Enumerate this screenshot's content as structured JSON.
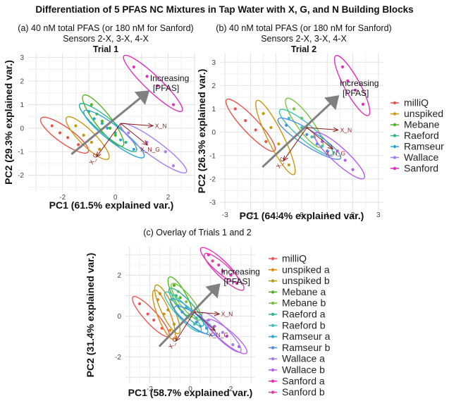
{
  "figure_title": "Differentiation of 5 PFAS NC Mixtures in Tap Water with X, G, and N Building Blocks",
  "panels": {
    "a": {
      "caption": "(a) 40 nM total PFAS (or 180 nM for Sanford)",
      "sensors": "Sensors 2-X, 3-X, 4-X",
      "trial": "Trial 1"
    },
    "b": {
      "caption": "(b) 40 nM total PFAS (or 180 nM for Sanford)",
      "sensors": "Sensors 2-X, 3-X, 4-X",
      "trial": "Trial 2"
    },
    "c": {
      "caption": "(c) Overlay of Trials 1 and 2"
    }
  },
  "annotation": {
    "arrow_label_line1": "Increasing",
    "arrow_label_line2": "[PFAS]"
  },
  "loadings": [
    "X_N",
    "X_N_G",
    "X_G"
  ],
  "colors": {
    "milliQ": "#e8534a",
    "unspiked": "#c79a0a",
    "Mebane": "#4fb31f",
    "Raeford": "#2ab592",
    "Ramseur": "#2aa6d8",
    "Wallace": "#a87cf0",
    "Sanford": "#e02fbd",
    "Mebane_b": "#72c43c",
    "Raeford_b": "#3cc4b1",
    "Ramseur_b": "#4d8ee8",
    "Wallace_b": "#b65df0",
    "milliQ_c": "#ec5555",
    "unspiked_a": "#e28a0a",
    "unspiked_b": "#b59a12",
    "Sanford_a": "#e92cc0",
    "Sanford_b": "#de3ea8"
  },
  "chart_data": [
    {
      "type": "scatter",
      "title": "Trial 1",
      "xlabel": "PC1 (61.5% explained var.)",
      "ylabel": "PC2 (29.3% explained var.)",
      "xlim": [
        -3.3,
        3.0
      ],
      "ylim": [
        -2.7,
        3.2
      ],
      "xticks": [
        -2,
        0,
        2
      ],
      "yticks": [
        -2,
        -1,
        0,
        1,
        2,
        3
      ],
      "series": [
        {
          "name": "milliQ",
          "points": [
            [
              -2.4,
              0.1
            ],
            [
              -2.1,
              -0.2
            ],
            [
              -1.8,
              -0.4
            ],
            [
              -1.4,
              -0.7
            ]
          ]
        },
        {
          "name": "unspiked",
          "points": [
            [
              -1.5,
              0.1
            ],
            [
              -1.2,
              -0.3
            ],
            [
              -0.9,
              -0.6
            ],
            [
              -0.6,
              -0.9
            ]
          ]
        },
        {
          "name": "Mebane",
          "points": [
            [
              -0.9,
              1.0
            ],
            [
              -0.7,
              0.6
            ],
            [
              -0.5,
              0.3
            ],
            [
              -0.2,
              0.0
            ],
            [
              0.0,
              -0.3
            ]
          ]
        },
        {
          "name": "Raeford",
          "points": [
            [
              -1.0,
              0.7
            ],
            [
              -0.5,
              0.2
            ],
            [
              0.0,
              -0.2
            ],
            [
              0.4,
              -0.6
            ]
          ]
        },
        {
          "name": "Ramseur",
          "points": [
            [
              -0.8,
              0.4
            ],
            [
              -0.3,
              0.0
            ],
            [
              0.2,
              -0.5
            ],
            [
              0.7,
              -0.9
            ]
          ]
        },
        {
          "name": "Wallace",
          "points": [
            [
              0.5,
              -0.2
            ],
            [
              1.2,
              -0.6
            ],
            [
              1.9,
              -1.0
            ],
            [
              2.2,
              -1.6
            ]
          ]
        },
        {
          "name": "Sanford",
          "points": [
            [
              0.7,
              2.6
            ],
            [
              1.2,
              2.2
            ],
            [
              1.6,
              1.8
            ],
            [
              2.2,
              1.0
            ]
          ]
        }
      ],
      "legend": [
        "milliQ",
        "unspiked",
        "Mebane",
        "Raeford",
        "Ramseur",
        "Wallace",
        "Sanford"
      ]
    },
    {
      "type": "scatter",
      "title": "Trial 2",
      "xlabel": "PC1 (64.4% explained var.)",
      "ylabel": "PC2 (26.3% explained var.)",
      "xlim": [
        -3.2,
        3.2
      ],
      "ylim": [
        -3.3,
        3.4
      ],
      "xticks": [
        -3,
        -2,
        -1,
        0,
        1,
        2,
        3
      ],
      "yticks": [
        -3,
        -2,
        -1,
        0,
        1,
        2,
        3
      ],
      "series": [
        {
          "name": "milliQ",
          "points": [
            [
              -2.6,
              1.0
            ],
            [
              -2.2,
              0.5
            ],
            [
              -1.8,
              0.1
            ],
            [
              -1.4,
              -0.4
            ]
          ]
        },
        {
          "name": "unspiked",
          "points": [
            [
              -1.5,
              0.8
            ],
            [
              -1.2,
              0.2
            ],
            [
              -0.9,
              -0.5
            ],
            [
              -0.5,
              -1.4
            ]
          ]
        },
        {
          "name": "Mebane",
          "points": [
            [
              -0.3,
              1.0
            ],
            [
              0.0,
              0.6
            ],
            [
              0.2,
              0.2
            ],
            [
              0.5,
              -0.2
            ]
          ]
        },
        {
          "name": "Raeford",
          "points": [
            [
              -0.5,
              0.6
            ],
            [
              0.0,
              0.2
            ],
            [
              0.4,
              -0.2
            ],
            [
              0.8,
              -0.6
            ]
          ]
        },
        {
          "name": "Ramseur",
          "points": [
            [
              -0.6,
              0.3
            ],
            [
              0.2,
              -0.1
            ],
            [
              0.6,
              -0.5
            ],
            [
              1.0,
              -0.8
            ]
          ]
        },
        {
          "name": "Wallace",
          "points": [
            [
              0.8,
              -0.4
            ],
            [
              1.4,
              -0.8
            ],
            [
              1.7,
              -1.2
            ],
            [
              2.0,
              -1.6
            ]
          ]
        },
        {
          "name": "Sanford",
          "points": [
            [
              1.6,
              2.8
            ],
            [
              1.8,
              2.2
            ],
            [
              2.1,
              1.8
            ],
            [
              2.4,
              1.2
            ]
          ]
        }
      ],
      "legend": [
        "milliQ",
        "unspiked",
        "Mebane",
        "Raeford",
        "Ramseur",
        "Wallace",
        "Sanford"
      ]
    },
    {
      "type": "scatter",
      "title": "Overlay of Trials 1 and 2",
      "xlabel": "PC1 (58.7% explained var.)",
      "ylabel": "PC2 (31.4% explained var.)",
      "xlim": [
        -3.2,
        3.2
      ],
      "ylim": [
        -3.3,
        3.4
      ],
      "xticks": [
        -2,
        0,
        2
      ],
      "yticks": [
        -2,
        0,
        2
      ],
      "series": [
        {
          "name": "milliQ",
          "points": [
            [
              -2.5,
              0.6
            ],
            [
              -2.1,
              0.1
            ],
            [
              -1.8,
              -0.2
            ],
            [
              -1.4,
              -0.6
            ]
          ]
        },
        {
          "name": "unspiked a",
          "points": [
            [
              -1.6,
              0.8
            ],
            [
              -1.3,
              0.1
            ],
            [
              -1.0,
              -0.7
            ]
          ]
        },
        {
          "name": "unspiked b",
          "points": [
            [
              -1.5,
              1.1
            ],
            [
              -1.1,
              0.3
            ],
            [
              -0.8,
              -0.4
            ]
          ]
        },
        {
          "name": "Mebane a",
          "points": [
            [
              -0.8,
              1.5
            ],
            [
              -0.5,
              0.9
            ],
            [
              -0.2,
              0.4
            ]
          ]
        },
        {
          "name": "Mebane b",
          "points": [
            [
              -0.6,
              1.2
            ],
            [
              -0.2,
              0.7
            ],
            [
              0.2,
              0.2
            ]
          ]
        },
        {
          "name": "Raeford a",
          "points": [
            [
              -0.7,
              1.0
            ],
            [
              -0.2,
              0.4
            ],
            [
              0.3,
              -0.1
            ]
          ]
        },
        {
          "name": "Raeford b",
          "points": [
            [
              -0.9,
              0.8
            ],
            [
              -0.4,
              0.2
            ],
            [
              0.2,
              -0.4
            ]
          ]
        },
        {
          "name": "Ramseur a",
          "points": [
            [
              -0.6,
              0.5
            ],
            [
              -0.1,
              0.0
            ],
            [
              0.5,
              -0.5
            ]
          ]
        },
        {
          "name": "Ramseur b",
          "points": [
            [
              -0.4,
              0.2
            ],
            [
              0.3,
              -0.3
            ],
            [
              0.8,
              -0.6
            ]
          ]
        },
        {
          "name": "Wallace a",
          "points": [
            [
              0.9,
              -0.2
            ],
            [
              1.6,
              -0.8
            ],
            [
              2.1,
              -1.4
            ]
          ]
        },
        {
          "name": "Wallace b",
          "points": [
            [
              1.2,
              -0.5
            ],
            [
              1.8,
              -1.0
            ],
            [
              2.4,
              -1.5
            ]
          ]
        },
        {
          "name": "Sanford a",
          "points": [
            [
              0.9,
              3.0
            ],
            [
              1.4,
              2.5
            ],
            [
              2.0,
              2.0
            ]
          ]
        },
        {
          "name": "Sanford b",
          "points": [
            [
              1.1,
              2.7
            ],
            [
              1.6,
              2.2
            ],
            [
              2.3,
              1.6
            ]
          ]
        }
      ],
      "legend": [
        "milliQ",
        "unspiked a",
        "unspiked b",
        "Mebane a",
        "Mebane b",
        "Raeford a",
        "Raeford b",
        "Ramseur a",
        "Ramseur b",
        "Wallace a",
        "Wallace b",
        "Sanford a",
        "Sanford b"
      ]
    }
  ]
}
